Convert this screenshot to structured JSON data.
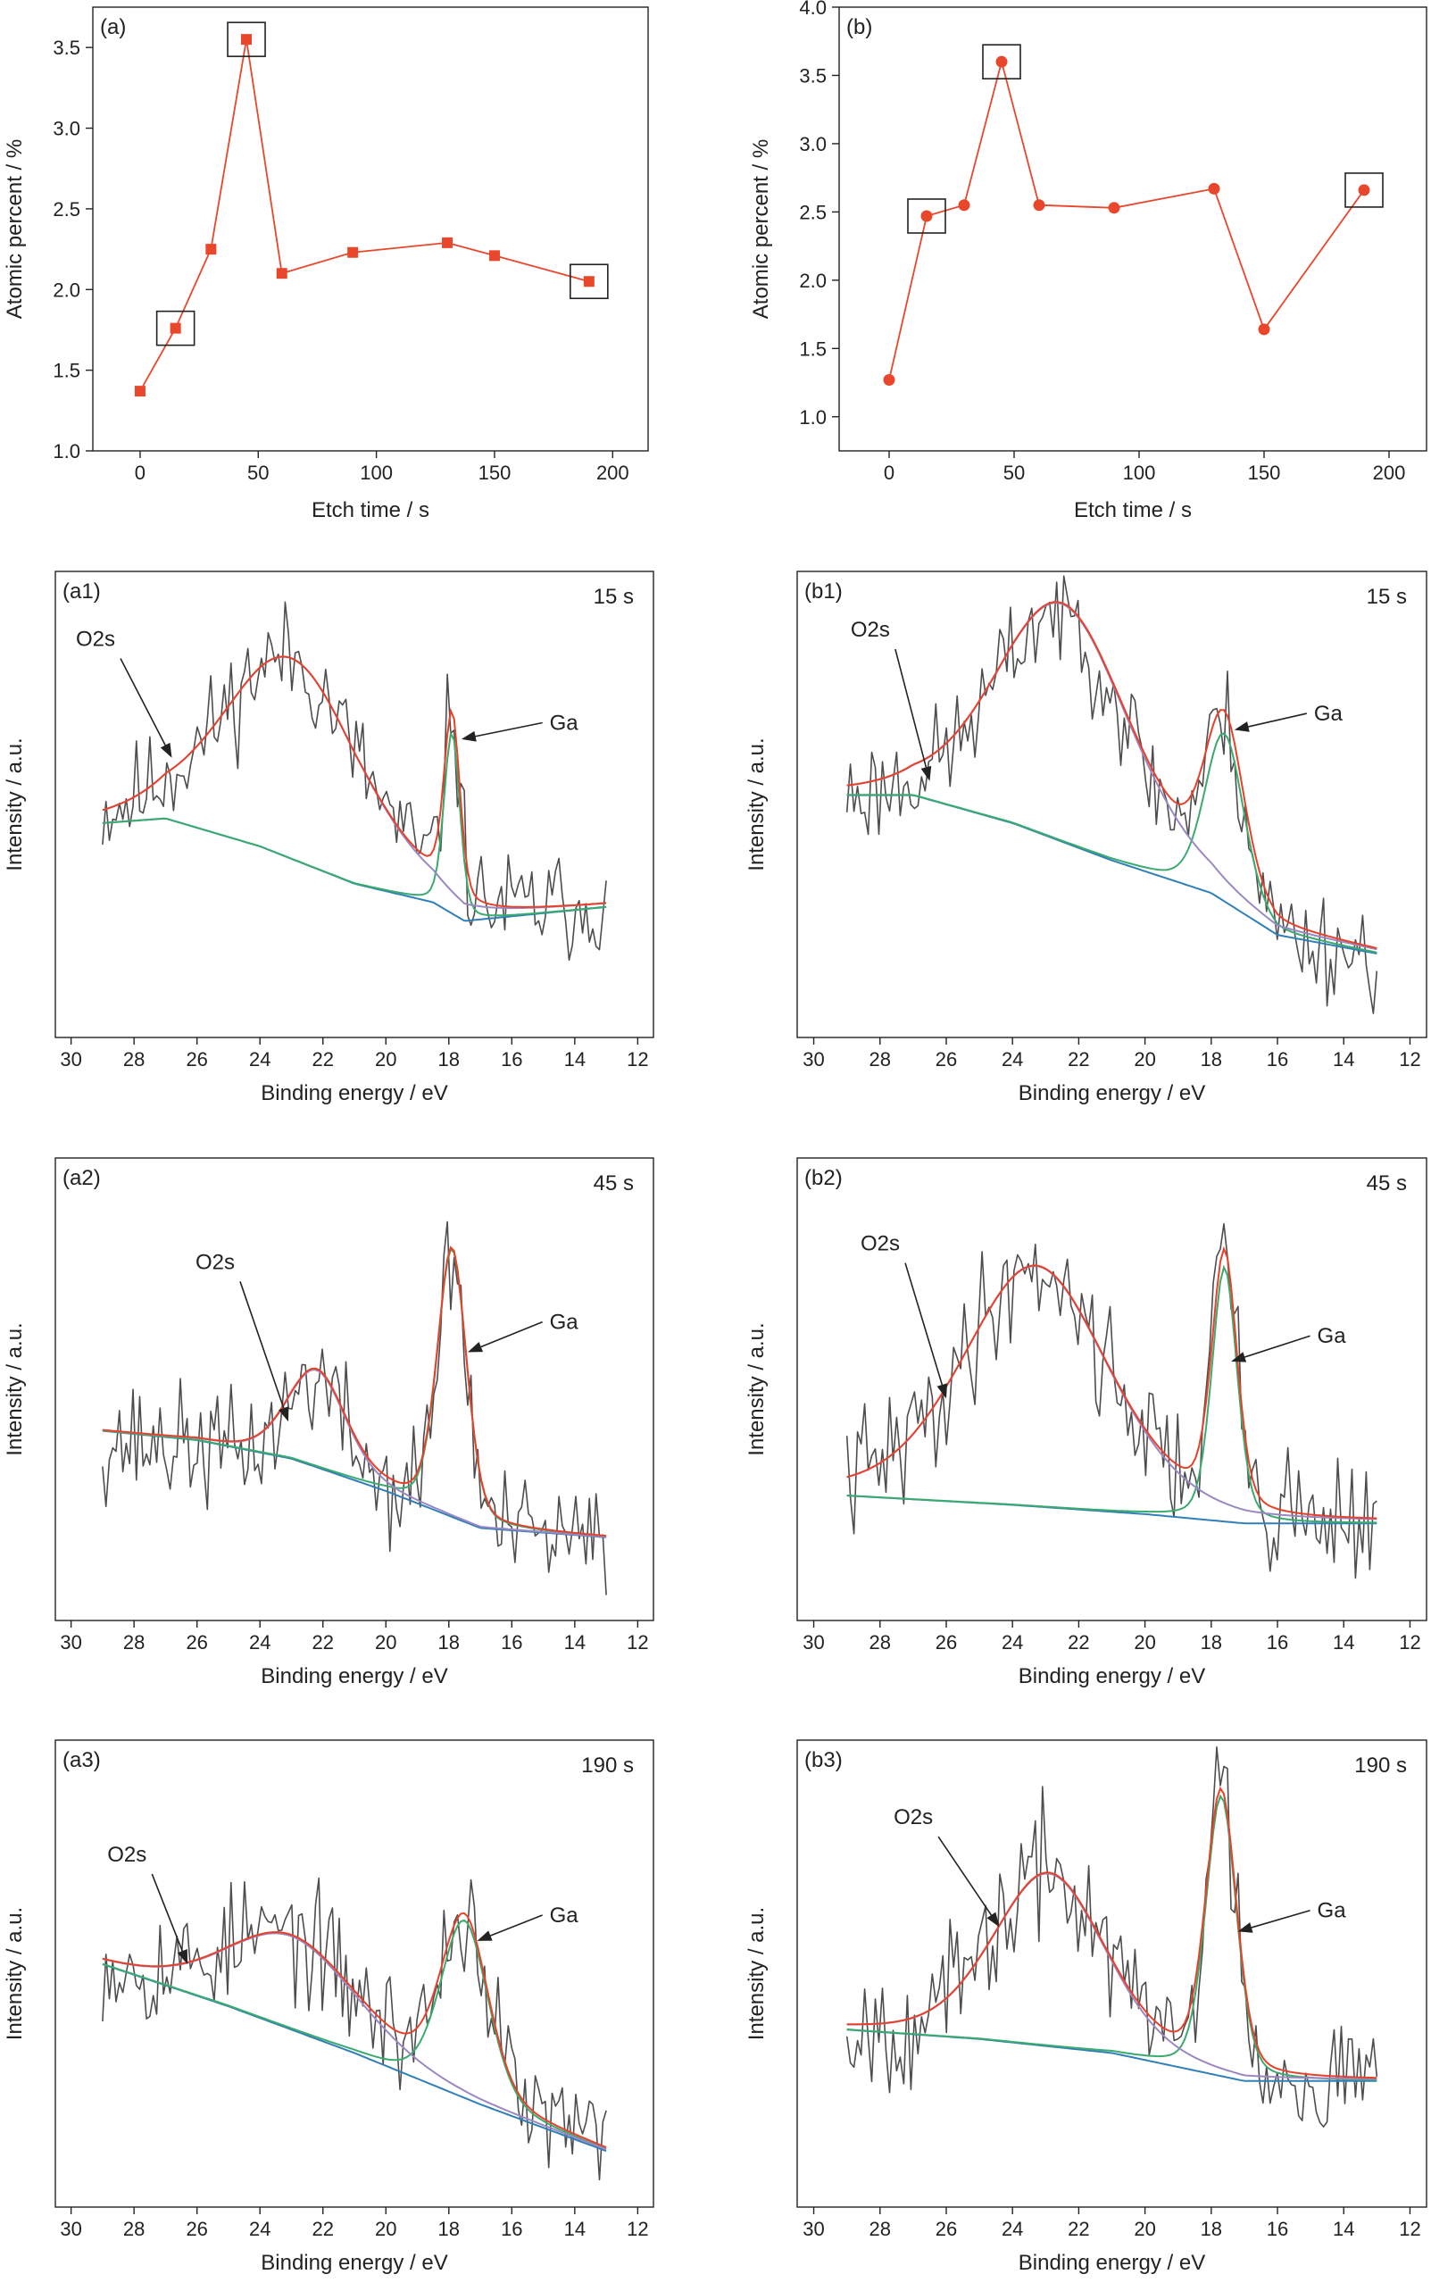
{
  "colors": {
    "axis": "#222222",
    "marker": "#e8472c",
    "raw": "#4d4d4d",
    "envelope": "#e8412a",
    "o2s": "#9b87c2",
    "ga": "#3aaa6e",
    "background": "#2f7fb8",
    "highlight_box": "#222222"
  },
  "chart_data": [
    {
      "id": "a",
      "type": "line",
      "panel_label": "(a)",
      "marker": "square",
      "xlabel": "Etch time / s",
      "ylabel": "Atomic percent / %",
      "xlim": [
        -20,
        215
      ],
      "ylim": [
        1.0,
        3.75
      ],
      "xticks": [
        0,
        50,
        100,
        150,
        200
      ],
      "yticks": [
        1.0,
        1.5,
        2.0,
        2.5,
        3.0,
        3.5
      ],
      "ytick_labels": [
        "1.0",
        "1.5",
        "2.0",
        "2.5",
        "3.0",
        "3.5"
      ],
      "x": [
        0,
        15,
        30,
        45,
        60,
        90,
        130,
        150,
        190
      ],
      "y": [
        1.37,
        1.76,
        2.25,
        3.55,
        2.1,
        2.23,
        2.29,
        2.21,
        2.05
      ],
      "boxed_x": [
        15,
        45,
        190
      ]
    },
    {
      "id": "b",
      "type": "line",
      "panel_label": "(b)",
      "marker": "circle",
      "xlabel": "Etch time / s",
      "ylabel": "Atomic percent / %",
      "xlim": [
        -20,
        215
      ],
      "ylim": [
        0.75,
        4.0
      ],
      "xticks": [
        0,
        50,
        100,
        150,
        200
      ],
      "yticks": [
        1.0,
        1.5,
        2.0,
        2.5,
        3.0,
        3.5,
        4.0
      ],
      "ytick_labels": [
        "1.0",
        "1.5",
        "2.0",
        "2.5",
        "3.0",
        "3.5",
        "4.0"
      ],
      "x": [
        0,
        15,
        30,
        45,
        60,
        90,
        130,
        150,
        190
      ],
      "y": [
        1.27,
        2.47,
        2.55,
        3.6,
        2.55,
        2.53,
        2.67,
        1.64,
        2.66
      ],
      "boxed_x": [
        15,
        45,
        190
      ]
    },
    {
      "id": "a1",
      "type": "line",
      "panel_label": "(a1)",
      "time_label": "15 s",
      "xlabel": "Binding energy / eV",
      "ylabel": "Intensity / a.u.",
      "xlim": [
        30.5,
        11.5
      ],
      "xticks": [
        30,
        28,
        26,
        24,
        22,
        20,
        18,
        16,
        14,
        12
      ],
      "ylim": [
        0,
        1
      ],
      "x_start": 29,
      "x_end": 13,
      "n": 150,
      "noise": 0.11,
      "noise_bias": 0.0,
      "seed": 11,
      "o2s_peak": {
        "center": 23.0,
        "height": 0.43,
        "width": 2.6
      },
      "ga_peak": {
        "center": 17.9,
        "height": 0.39,
        "width": 0.3
      },
      "background": [
        [
          29,
          0.46
        ],
        [
          27,
          0.47
        ],
        [
          24,
          0.41
        ],
        [
          21,
          0.33
        ],
        [
          18.5,
          0.29
        ],
        [
          17.5,
          0.25
        ],
        [
          13,
          0.28
        ]
      ],
      "annotations": [
        {
          "text": "O2s",
          "tx": 28.6,
          "ty": 0.84,
          "ax": 26.8,
          "ay": 0.6
        },
        {
          "text": "Ga",
          "tx": 14.8,
          "ty": 0.66,
          "ax": 17.6,
          "ay": 0.64
        }
      ]
    },
    {
      "id": "b1",
      "type": "line",
      "panel_label": "(b1)",
      "time_label": "15 s",
      "xlabel": "Binding energy / eV",
      "ylabel": "Intensity / a.u.",
      "xlim": [
        30.5,
        11.5
      ],
      "xticks": [
        30,
        28,
        26,
        24,
        22,
        20,
        18,
        16,
        14,
        12
      ],
      "ylim": [
        0,
        1
      ],
      "x_start": 29,
      "x_end": 13,
      "n": 150,
      "noise": 0.11,
      "noise_bias": -0.02,
      "seed": 23,
      "o2s_peak": {
        "center": 22.5,
        "height": 0.51,
        "width": 2.4
      },
      "ga_peak": {
        "center": 17.6,
        "height": 0.36,
        "width": 0.7
      },
      "background": [
        [
          29,
          0.52
        ],
        [
          27,
          0.52
        ],
        [
          24,
          0.46
        ],
        [
          21,
          0.38
        ],
        [
          18,
          0.31
        ],
        [
          16,
          0.22
        ],
        [
          13,
          0.18
        ]
      ],
      "annotations": [
        {
          "text": "O2s",
          "tx": 27.7,
          "ty": 0.86,
          "ax": 26.5,
          "ay": 0.55
        },
        {
          "text": "Ga",
          "tx": 14.9,
          "ty": 0.68,
          "ax": 17.3,
          "ay": 0.66
        }
      ]
    },
    {
      "id": "a2",
      "type": "line",
      "panel_label": "(a2)",
      "time_label": "45 s",
      "xlabel": "Binding energy / eV",
      "ylabel": "Intensity / a.u.",
      "xlim": [
        30.5,
        11.5
      ],
      "xticks": [
        30,
        28,
        26,
        24,
        22,
        20,
        18,
        16,
        14,
        12
      ],
      "ylim": [
        0,
        1
      ],
      "x_start": 29,
      "x_end": 13,
      "n": 150,
      "noise": 0.12,
      "noise_bias": -0.02,
      "seed": 37,
      "o2s_peak": {
        "center": 22.2,
        "height": 0.21,
        "width": 1.1
      },
      "ga_peak": {
        "center": 17.9,
        "height": 0.58,
        "width": 0.55
      },
      "background": [
        [
          29,
          0.41
        ],
        [
          26,
          0.39
        ],
        [
          23,
          0.35
        ],
        [
          20,
          0.28
        ],
        [
          17,
          0.2
        ],
        [
          13,
          0.18
        ]
      ],
      "annotations": [
        {
          "text": "O2s",
          "tx": 24.8,
          "ty": 0.76,
          "ax": 23.1,
          "ay": 0.43
        },
        {
          "text": "Ga",
          "tx": 14.8,
          "ty": 0.63,
          "ax": 17.4,
          "ay": 0.58
        }
      ]
    },
    {
      "id": "b2",
      "type": "line",
      "panel_label": "(b2)",
      "time_label": "45 s",
      "xlabel": "Binding energy / eV",
      "ylabel": "Intensity / a.u.",
      "xlim": [
        30.5,
        11.5
      ],
      "xticks": [
        30,
        28,
        26,
        24,
        22,
        20,
        18,
        16,
        14,
        12
      ],
      "ylim": [
        0,
        1
      ],
      "x_start": 29,
      "x_end": 13,
      "n": 150,
      "noise": 0.13,
      "noise_bias": 0.0,
      "seed": 41,
      "o2s_peak": {
        "center": 23.3,
        "height": 0.52,
        "width": 2.6
      },
      "ga_peak": {
        "center": 17.6,
        "height": 0.55,
        "width": 0.45
      },
      "background": [
        [
          29,
          0.27
        ],
        [
          24,
          0.25
        ],
        [
          20,
          0.23
        ],
        [
          17,
          0.21
        ],
        [
          13,
          0.21
        ]
      ],
      "annotations": [
        {
          "text": "O2s",
          "tx": 27.4,
          "ty": 0.8,
          "ax": 26.0,
          "ay": 0.48
        },
        {
          "text": "Ga",
          "tx": 14.8,
          "ty": 0.6,
          "ax": 17.4,
          "ay": 0.56
        }
      ]
    },
    {
      "id": "a3",
      "type": "line",
      "panel_label": "(a3)",
      "time_label": "190 s",
      "xlabel": "Binding energy / eV",
      "ylabel": "Intensity / a.u.",
      "xlim": [
        30.5,
        11.5
      ],
      "xticks": [
        30,
        28,
        26,
        24,
        22,
        20,
        18,
        16,
        14,
        12
      ],
      "ylim": [
        0,
        1
      ],
      "x_start": 29,
      "x_end": 13,
      "n": 150,
      "noise": 0.12,
      "noise_bias": 0.0,
      "seed": 53,
      "o2s_peak": {
        "center": 23.0,
        "height": 0.2,
        "width": 2.5
      },
      "ga_peak": {
        "center": 17.5,
        "height": 0.38,
        "width": 0.9
      },
      "background": [
        [
          29,
          0.52
        ],
        [
          25,
          0.43
        ],
        [
          21,
          0.33
        ],
        [
          17,
          0.22
        ],
        [
          13,
          0.12
        ]
      ],
      "annotations": [
        {
          "text": "O2s",
          "tx": 27.6,
          "ty": 0.74,
          "ax": 26.3,
          "ay": 0.52
        },
        {
          "text": "Ga",
          "tx": 14.8,
          "ty": 0.61,
          "ax": 17.1,
          "ay": 0.57
        }
      ]
    },
    {
      "id": "b3",
      "type": "line",
      "panel_label": "(b3)",
      "time_label": "190 s",
      "xlabel": "Binding energy / eV",
      "ylabel": "Intensity / a.u.",
      "xlim": [
        30.5,
        11.5
      ],
      "xticks": [
        30,
        28,
        26,
        24,
        22,
        20,
        18,
        16,
        14,
        12
      ],
      "ylim": [
        0,
        1
      ],
      "x_start": 29,
      "x_end": 13,
      "n": 150,
      "noise": 0.13,
      "noise_bias": 0.0,
      "seed": 67,
      "o2s_peak": {
        "center": 22.9,
        "height": 0.37,
        "width": 2.0
      },
      "ga_peak": {
        "center": 17.7,
        "height": 0.6,
        "width": 0.55
      },
      "background": [
        [
          29,
          0.38
        ],
        [
          25,
          0.36
        ],
        [
          21,
          0.33
        ],
        [
          19,
          0.3
        ],
        [
          17,
          0.27
        ],
        [
          13,
          0.27
        ]
      ],
      "annotations": [
        {
          "text": "O2s",
          "tx": 26.4,
          "ty": 0.82,
          "ax": 24.4,
          "ay": 0.6
        },
        {
          "text": "Ga",
          "tx": 14.8,
          "ty": 0.62,
          "ax": 17.2,
          "ay": 0.59
        }
      ]
    }
  ]
}
